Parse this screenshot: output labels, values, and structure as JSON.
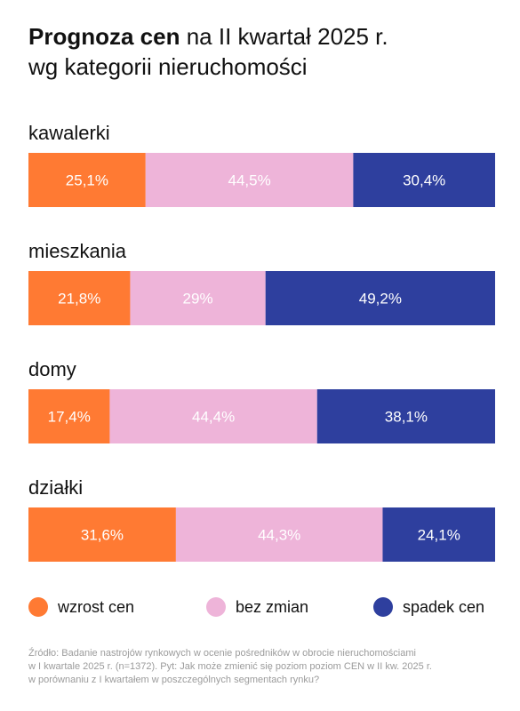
{
  "title": {
    "bold": "Prognoza cen",
    "rest": "na II kwartał 2025 r.",
    "line2": "wg kategorii nieruchomości"
  },
  "colors": {
    "increase": "#ff7a33",
    "no_change": "#eeb4d9",
    "decrease": "#2e3f9e",
    "label_dark": "#111111",
    "bar_text": "#ffffff"
  },
  "chart_data": {
    "type": "bar",
    "orientation": "horizontal",
    "stacked": true,
    "categories": [
      "kawalerki",
      "mieszkania",
      "domy",
      "działki"
    ],
    "series": [
      {
        "name": "wzrost cen",
        "values": [
          25.1,
          21.8,
          17.4,
          31.6
        ],
        "labels": [
          "25,1%",
          "21,8%",
          "17,4%",
          "31,6%"
        ]
      },
      {
        "name": "bez zmian",
        "values": [
          44.5,
          29,
          44.4,
          44.3
        ],
        "labels": [
          "44,5%",
          "29%",
          "44,4%",
          "44,3%"
        ]
      },
      {
        "name": "spadek cen",
        "values": [
          30.4,
          49.2,
          38.1,
          24.1
        ],
        "labels": [
          "30,4%",
          "49,2%",
          "38,1%",
          "24,1%"
        ]
      }
    ],
    "unit": "%",
    "legend_position": "bottom"
  },
  "legend": [
    {
      "label": "wzrost cen",
      "color": "#ff7a33"
    },
    {
      "label": "bez zmian",
      "color": "#eeb4d9"
    },
    {
      "label": "spadek cen",
      "color": "#2e3f9e"
    }
  ],
  "source": {
    "line1": "Źródło: Badanie nastrojów rynkowych w ocenie pośredników w obrocie nieruchomościami",
    "line2": "w I kwartale 2025 r. (n=1372). Pyt: Jak może zmienić się poziom poziom CEN w II kw. 2025 r.",
    "line3": "w porównaniu z I kwartałem w poszczególnych segmentach rynku?"
  }
}
